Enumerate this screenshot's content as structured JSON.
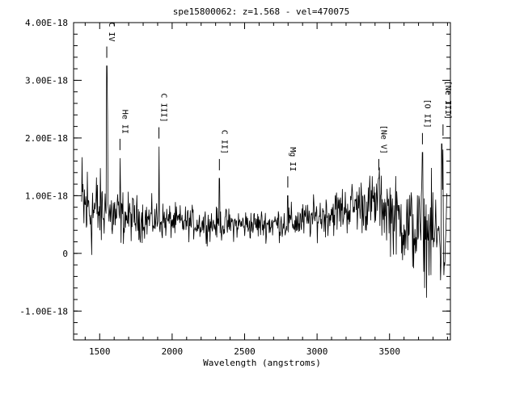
{
  "chart_data": {
    "type": "line",
    "title": "spe15800062: z=1.568 - vel=470075",
    "xlabel": "Wavelength (angstroms)",
    "ylabel": "",
    "xlim": [
      1320,
      3920
    ],
    "ylim": [
      -1.5e-18,
      4e-18
    ],
    "xticks": [
      1500,
      2000,
      2500,
      3000,
      3500
    ],
    "xtick_labels": [
      "1500",
      "2000",
      "2500",
      "3000",
      "3500"
    ],
    "yticks": [
      -1e-18,
      0,
      1e-18,
      2e-18,
      3e-18,
      4e-18
    ],
    "ytick_labels": [
      "-1.00E-18",
      "0",
      "1.00E-18",
      "2.00E-18",
      "3.00E-18",
      "4.00E-18"
    ],
    "grid": false,
    "spectrum": {
      "x_start": 1375,
      "x_end": 3895,
      "n_points": 760,
      "baseline": [
        [
          1375,
          8e-19
        ],
        [
          1450,
          7.5e-19
        ],
        [
          1600,
          6.5e-19
        ],
        [
          1800,
          6e-19
        ],
        [
          2000,
          5.5e-19
        ],
        [
          2300,
          5e-19
        ],
        [
          2600,
          5e-19
        ],
        [
          2900,
          5.5e-19
        ],
        [
          3100,
          7e-19
        ],
        [
          3300,
          8.5e-19
        ],
        [
          3450,
          8.5e-19
        ],
        [
          3550,
          6e-19
        ],
        [
          3700,
          3.5e-19
        ],
        [
          3800,
          3e-19
        ],
        [
          3895,
          2.5e-19
        ]
      ],
      "noise": [
        [
          1375,
          9e-19
        ],
        [
          1500,
          6e-19
        ],
        [
          1700,
          3.5e-19
        ],
        [
          2000,
          2.5e-19
        ],
        [
          2600,
          2.2e-19
        ],
        [
          3000,
          3e-19
        ],
        [
          3300,
          4e-19
        ],
        [
          3500,
          5.5e-19
        ],
        [
          3700,
          7e-19
        ],
        [
          3895,
          9e-19
        ]
      ],
      "peaks": [
        {
          "x": 1549,
          "y": 3.25e-18
        },
        {
          "x": 1555,
          "y": 2.4e-18
        },
        {
          "x": 1640,
          "y": 1.65e-18
        },
        {
          "x": 1909,
          "y": 1.85e-18
        },
        {
          "x": 2326,
          "y": 1.3e-18
        },
        {
          "x": 2798,
          "y": 1e-18
        },
        {
          "x": 3426,
          "y": 1.3e-18
        },
        {
          "x": 3727,
          "y": 1.75e-18
        },
        {
          "x": 3860,
          "y": 1.9e-18
        },
        {
          "x": 3869,
          "y": 1.8e-18
        }
      ]
    },
    "lines": [
      {
        "label": "C IV",
        "x": 1549
      },
      {
        "label": "He II",
        "x": 1640
      },
      {
        "label": "C III]",
        "x": 1909
      },
      {
        "label": "C II]",
        "x": 2326
      },
      {
        "label": "Mg II",
        "x": 2798
      },
      {
        "label": "[Ne V]",
        "x": 3426
      },
      {
        "label": "[O II]",
        "x": 3727
      },
      {
        "label": "[Ne III]",
        "x": 3869
      }
    ]
  }
}
